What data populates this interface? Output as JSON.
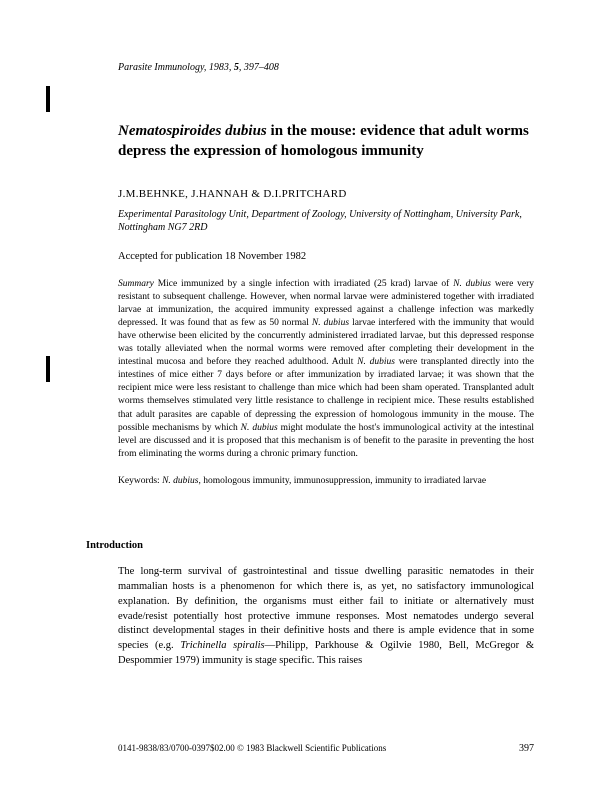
{
  "journal": {
    "name": "Parasite Immunology",
    "year": "1983",
    "volume": "5",
    "pages": "397–408"
  },
  "title": {
    "species": "Nematospiroides dubius",
    "rest": " in the mouse: evidence that adult worms depress the expression of homologous immunity"
  },
  "authors": "J.M.BEHNKE, J.HANNAH & D.I.PRITCHARD",
  "affiliation": "Experimental Parasitology Unit, Department of Zoology, University of Nottingham, University Park, Nottingham NG7 2RD",
  "accepted": "Accepted for publication 18 November 1982",
  "summary": {
    "label": "Summary",
    "text_before_species1": " Mice immunized by a single infection with irradiated (25 krad) larvae of ",
    "species1": "N. dubius",
    "text_mid1": " were very resistant to subsequent challenge. However, when normal larvae were administered together with irradiated larvae at immunization, the acquired immunity expressed against a challenge infection was markedly depressed. It was found that as few as 50 normal ",
    "species2": "N. dubius",
    "text_mid2": " larvae interfered with the immunity that would have otherwise been elicited by the concurrently administered irradiated larvae, but this depressed response was totally alleviated when the normal worms were removed after completing their development in the intestinal mucosa and before they reached adulthood. Adult ",
    "species3": "N. dubius",
    "text_mid3": " were transplanted directly into the intestines of mice either 7 days before or after immunization by irradiated larvae; it was shown that the recipient mice were less resistant to challenge than mice which had been sham operated. Transplanted adult worms themselves stimulated very little resistance to challenge in recipient mice. These results established that adult parasites are capable of depressing the expression of homologous immunity in the mouse. The possible mechanisms by which ",
    "species4": "N. dubius",
    "text_end": " might modulate the host's immunological activity at the intestinal level are discussed and it is proposed that this mechanism is of benefit to the parasite in preventing the host from eliminating the worms during a chronic primary function."
  },
  "keywords": {
    "label": "Keywords: ",
    "species": "N. dubius",
    "rest": ", homologous immunity, immunosuppression, immunity to irradiated larvae"
  },
  "section": "Introduction",
  "intro": {
    "text1": "The long-term survival of gastrointestinal and tissue dwelling parasitic nematodes in their mammalian hosts is a phenomenon for which there is, as yet, no satisfactory immunological explanation. By definition, the organisms must either fail to initiate or alternatively must evade/resist potentially host protective immune responses. Most nematodes undergo several distinct developmental stages in their definitive hosts and there is ample evidence that in some species (e.g. ",
    "species": "Trichinella spiralis",
    "text2": "—Philipp, Parkhouse & Ogilvie 1980, Bell, McGregor & Despommier 1979) immunity is stage specific. This raises"
  },
  "footer": {
    "copyright": "0141-9838/83/0700-0397$02.00   © 1983 Blackwell Scientific Publications",
    "pagenum": "397"
  },
  "colors": {
    "text": "#000000",
    "background": "#ffffff"
  }
}
